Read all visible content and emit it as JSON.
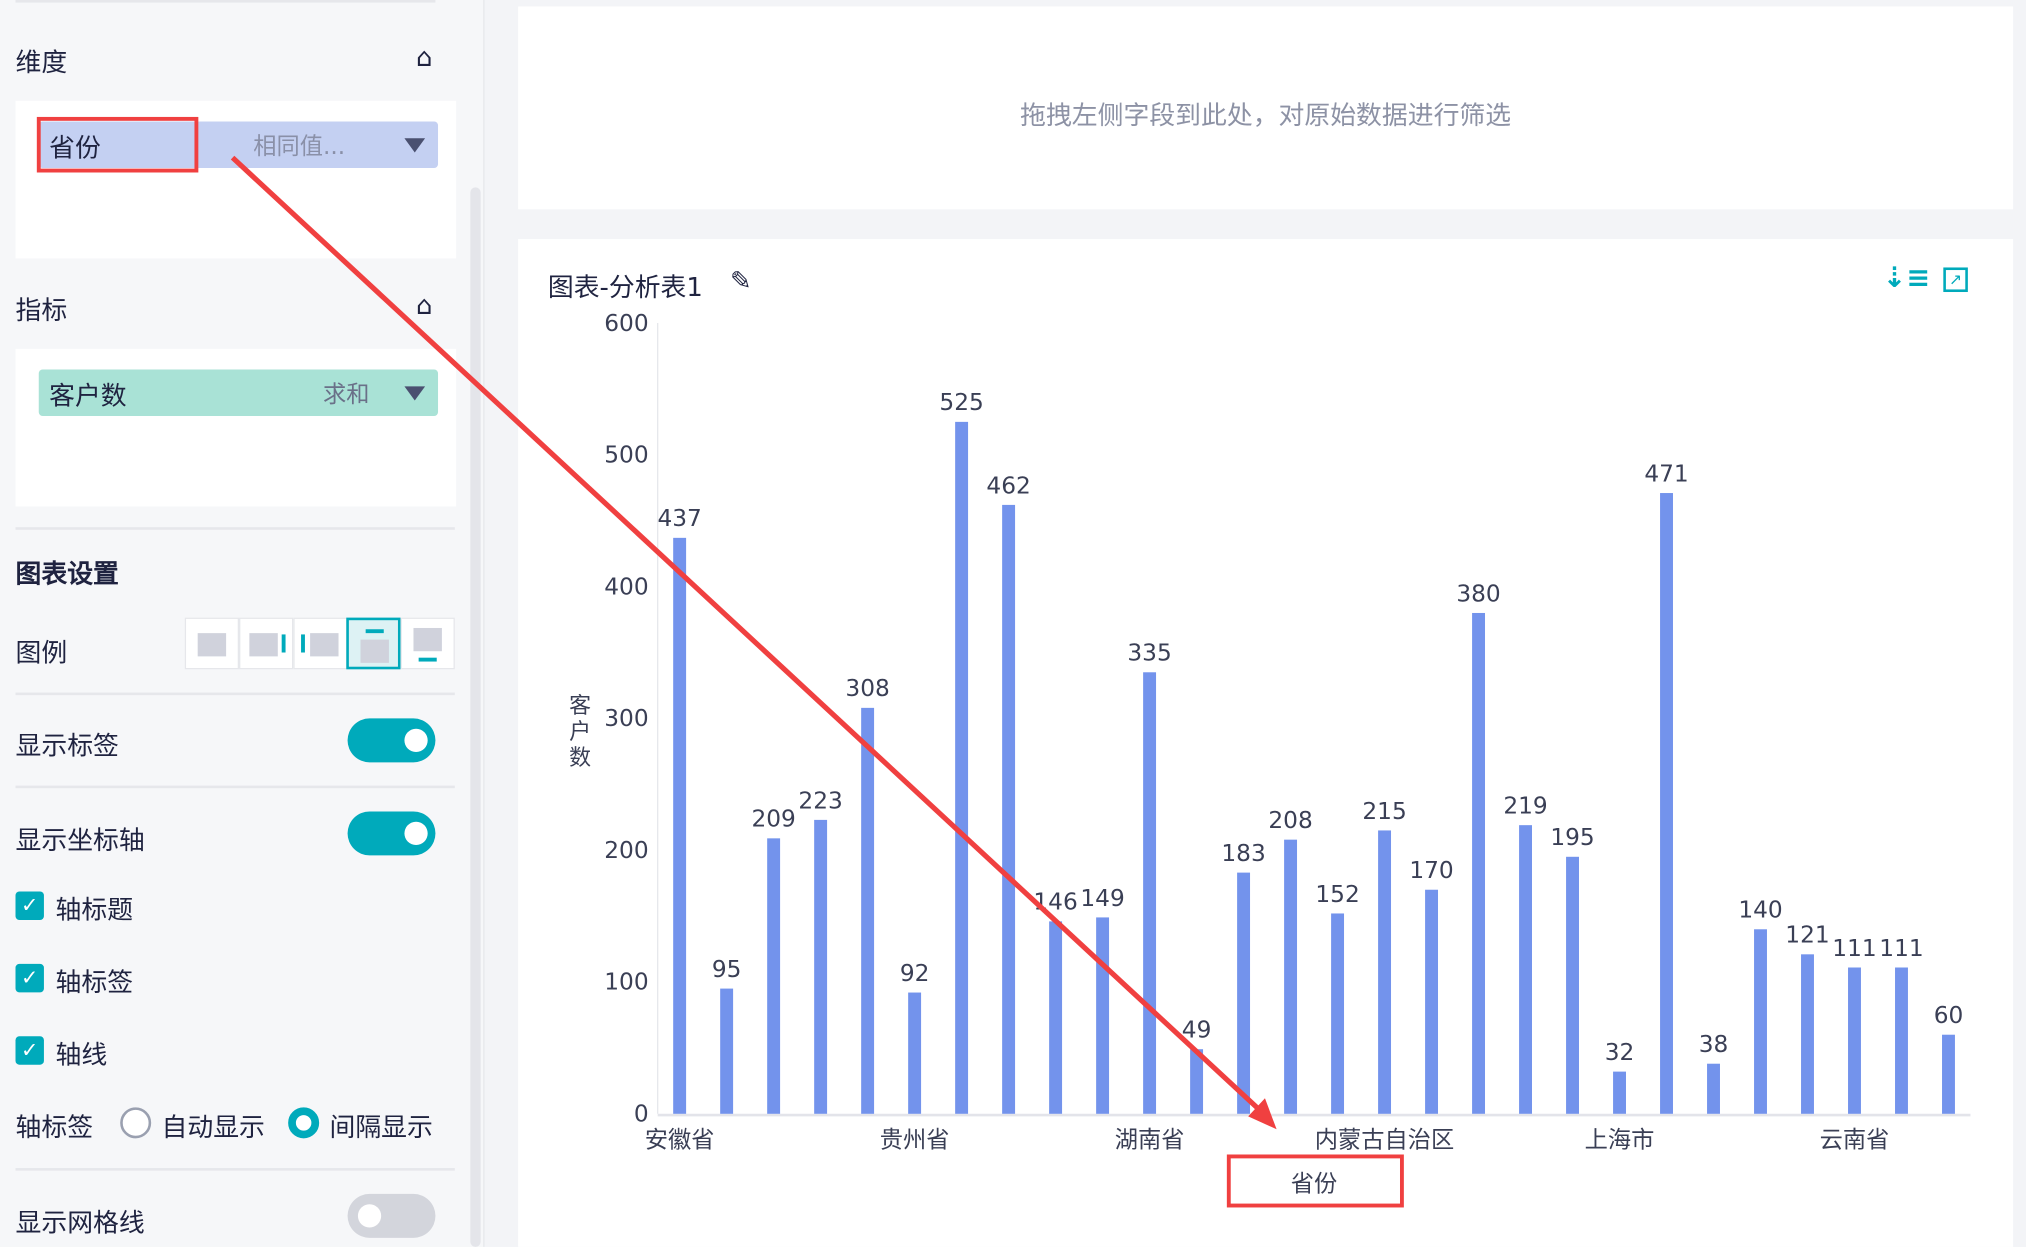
{
  "left_panel": {
    "dimension": {
      "title": "维度",
      "field": "省份",
      "filter": "相同值..."
    },
    "metric": {
      "title": "指标",
      "field": "客户数",
      "agg": "求和"
    },
    "chart_settings": {
      "title": "图表设置",
      "legend_label": "图例",
      "legend_options": [
        "none",
        "right",
        "left",
        "top",
        "bottom"
      ],
      "legend_selected": "top",
      "show_labels": {
        "label": "显示标签",
        "on": true
      },
      "show_axis": {
        "label": "显示坐标轴",
        "on": true
      },
      "axis_title": {
        "label": "轴标题",
        "checked": true
      },
      "axis_labels": {
        "label": "轴标签",
        "checked": true
      },
      "axis_line": {
        "label": "轴线",
        "checked": true
      },
      "axis_label_mode": {
        "label": "轴标签",
        "options": [
          "自动显示",
          "间隔显示"
        ],
        "selected": "间隔显示"
      },
      "show_grid": {
        "label": "显示网格线",
        "on": false
      }
    }
  },
  "filter_area": {
    "placeholder": "拖拽左侧字段到此处，对原始数据进行筛选"
  },
  "chart_card": {
    "title": "图表-分析表1",
    "icons": [
      "edit-icon",
      "sort-icon",
      "expand-icon"
    ]
  },
  "colors": {
    "accent": "#00aabb",
    "bar": "#7393ec",
    "annotation": "#f04040"
  },
  "chart_data": {
    "type": "bar",
    "xlabel": "省份",
    "ylabel": "客户数",
    "ylim": [
      0,
      600
    ],
    "yticks": [
      0,
      100,
      200,
      300,
      400,
      500,
      600
    ],
    "grid": false,
    "tick_labels": [
      {
        "index": 0,
        "label": "安徽省"
      },
      {
        "index": 5,
        "label": "贵州省"
      },
      {
        "index": 10,
        "label": "湖南省"
      },
      {
        "index": 15,
        "label": "内蒙古自治区"
      },
      {
        "index": 20,
        "label": "上海市"
      },
      {
        "index": 25,
        "label": "云南省"
      }
    ],
    "values": [
      437,
      95,
      209,
      223,
      308,
      92,
      525,
      462,
      146,
      149,
      335,
      49,
      183,
      208,
      152,
      215,
      170,
      380,
      219,
      195,
      32,
      471,
      38,
      140,
      121,
      111,
      111,
      60
    ]
  }
}
